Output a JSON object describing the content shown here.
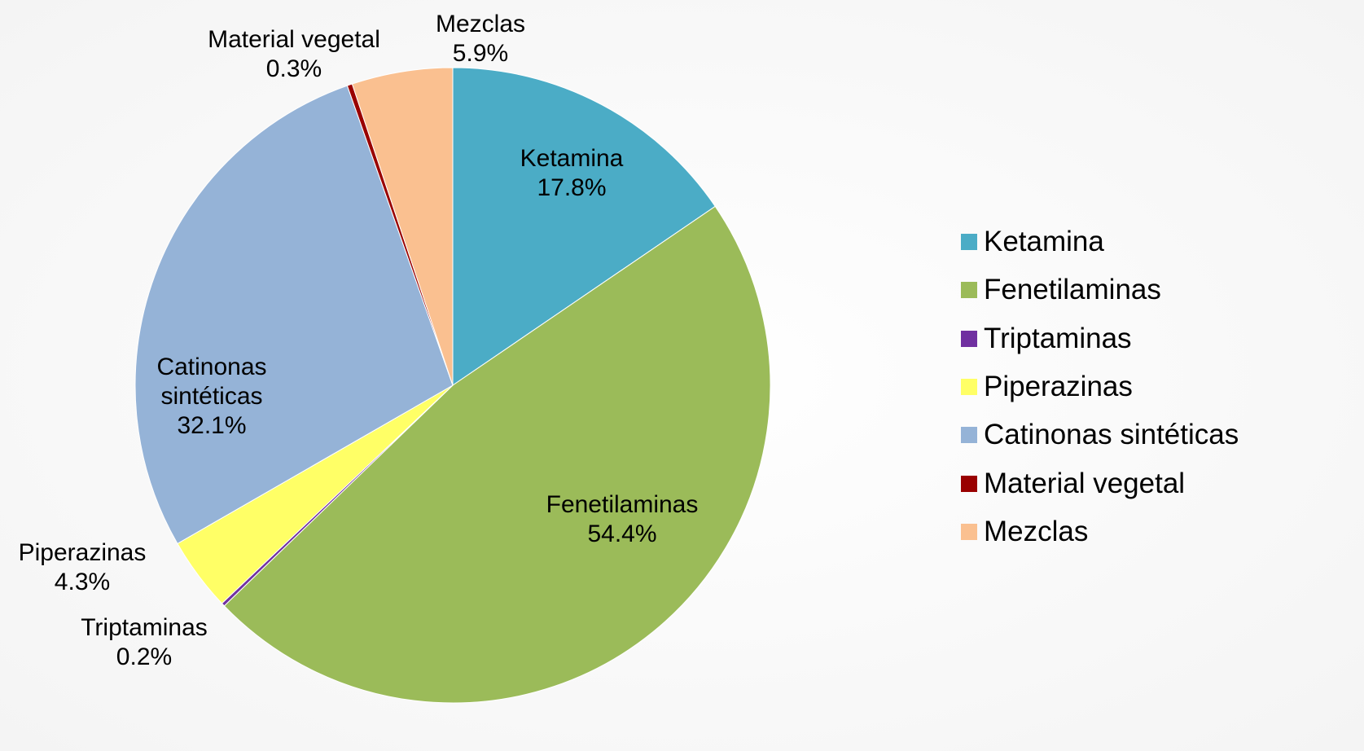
{
  "chart_data": {
    "type": "pie",
    "categories": [
      "Ketamina",
      "Fenetilaminas",
      "Triptaminas",
      "Piperazinas",
      "Catinonas sintéticas",
      "Material vegetal",
      "Mezclas"
    ],
    "values": [
      17.8,
      54.4,
      0.2,
      4.3,
      32.1,
      0.3,
      5.9
    ],
    "value_labels": [
      "17.8%",
      "54.4%",
      "0.2%",
      "4.3%",
      "32.1%",
      "0.3%",
      "5.9%"
    ],
    "colors": [
      "#4bacc6",
      "#9bbb59",
      "#7030a0",
      "#ffff66",
      "#95b3d7",
      "#990000",
      "#fac090"
    ],
    "legend": "right"
  }
}
